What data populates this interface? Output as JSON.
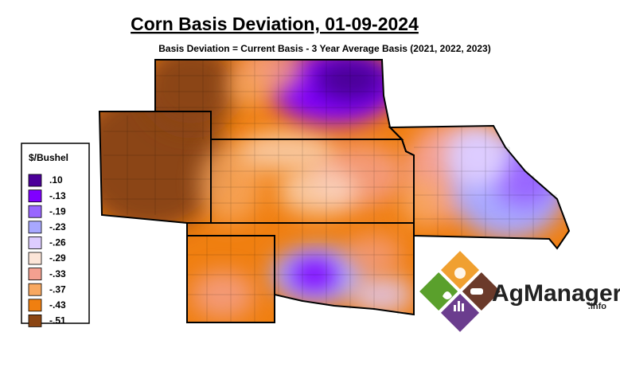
{
  "header": {
    "title": "Corn Basis Deviation, 01-09-2024",
    "subtitle": "Basis Deviation = Current Basis - 3 Year Average Basis (2021, 2022, 2023)"
  },
  "legend": {
    "title": "$/Bushel",
    "items": [
      {
        "label": ".10",
        "color": "#4c0099"
      },
      {
        "label": "-.13",
        "color": "#8000ff"
      },
      {
        "label": "-.19",
        "color": "#9966ff"
      },
      {
        "label": "-.23",
        "color": "#a8a8ff"
      },
      {
        "label": "-.26",
        "color": "#ddccff"
      },
      {
        "label": "-.29",
        "color": "#fce5d8"
      },
      {
        "label": "-.33",
        "color": "#f4a090"
      },
      {
        "label": "-.37",
        "color": "#f8a860"
      },
      {
        "label": "-.43",
        "color": "#f07f10"
      },
      {
        "label": "-.51",
        "color": "#8b4513"
      }
    ]
  },
  "logo": {
    "name": "AgManager",
    "suffix": ".info"
  }
}
